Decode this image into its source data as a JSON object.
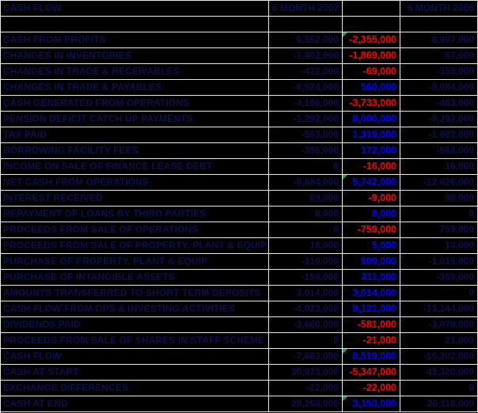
{
  "table": {
    "title": "CASH FLOW",
    "header": {
      "col1": "CASH FLOW",
      "col2": "6 MONTH 2007",
      "col3": "",
      "col4": "6 MONTH 2006"
    },
    "rows": [
      {
        "label": "",
        "v2007": "",
        "variance": "",
        "v2006": "",
        "flag": false
      },
      {
        "label": "CASH FROM PROFITS",
        "v2007": "6,552,000",
        "variance": "-2,355,000",
        "v2006": "8,907,000",
        "flag": true
      },
      {
        "label": "CHANGES IN INVENTORIES",
        "v2007": "-1,802,000",
        "variance": "-1,869,000",
        "v2006": "67,000",
        "flag": false
      },
      {
        "label": "CHANGES IN TRADE & RECEIVABLES",
        "v2007": "-422,000",
        "variance": "-69,000",
        "v2006": "-353,000",
        "flag": false
      },
      {
        "label": "CHANGES IN TRADE & PAYABLES",
        "v2007": "-8,524,000",
        "variance": "560,000",
        "v2006": "-9,084,000",
        "flag": false
      },
      {
        "label": "CASH GENERATED FROM OPERATIONS",
        "v2007": "-4,196,000",
        "variance": "-3,733,000",
        "v2006": "-463,000",
        "flag": false
      },
      {
        "label": "PENSION DEFICIT CATCH UP PAYMENTS",
        "v2007": "-1,292,000",
        "variance": "8,000,000",
        "v2006": "-9,292,000",
        "flag": false
      },
      {
        "label": "TAX PAID",
        "v2007": "-563,000",
        "variance": "1,319,000",
        "v2006": "-1,882,000",
        "flag": false
      },
      {
        "label": "BORROWING FACILITY FEES",
        "v2007": "-396,000",
        "variance": "172,000",
        "v2006": "-568,000",
        "flag": false
      },
      {
        "label": "INCOME ON SALE OF FINANCE LEASE DEBT",
        "v2007": "0",
        "variance": "-16,000",
        "v2006": "16,000",
        "flag": false
      },
      {
        "label": "NET CASH FROM OPERATIONS",
        "v2007": "-6,884,000",
        "variance": "5,742,000",
        "v2006": "-12,626,000",
        "flag": true
      },
      {
        "label": "INTEREST RECEIVED",
        "v2007": "89,000",
        "variance": "-9,000",
        "v2006": "98,000",
        "flag": false
      },
      {
        "label": "REPAYMENT OF LOANS BY THIRD PARTIES",
        "v2007": "8,000",
        "variance": "8,000",
        "v2006": "0",
        "flag": false
      },
      {
        "label": "PROCEEDS FROM SALE OF OPERATIONS",
        "v2007": "0",
        "variance": "-759,000",
        "v2006": "759,000",
        "flag": false
      },
      {
        "label": "PROCEEDS FROM SALE OF PROPERTY, PLANT & EQUIP",
        "v2007": "18,000",
        "variance": "5,000",
        "v2006": "13,000",
        "flag": false
      },
      {
        "label": "PURCHASE OF PROPERTY, PLANT & EQUIP",
        "v2007": "-110,000",
        "variance": "909,000",
        "v2006": "-1,019,000",
        "flag": false
      },
      {
        "label": "PURCHASE OF INTANGIBLE ASSETS",
        "v2007": "-158,000",
        "variance": "211,000",
        "v2006": "-369,000",
        "flag": false
      },
      {
        "label": "AMOUNTS TRANSFERRED TO SHORT TERM DEPOSITS",
        "v2007": "3,014,000",
        "variance": "3,014,000",
        "v2006": "0",
        "flag": false
      },
      {
        "label": "CASH FLOW FROM OPS & INVESTING ACTIVITIES",
        "v2007": "-4,023,000",
        "variance": "9,121,000",
        "v2006": "-13,144,000",
        "flag": false
      },
      {
        "label": "DIVIDENDS PAID",
        "v2007": "-3,660,000",
        "variance": "-581,000",
        "v2006": "-3,079,000",
        "flag": false
      },
      {
        "label": "PROCEEDS FROM SALE OF SHARES IN STAFF SCHEME",
        "v2007": "0",
        "variance": "-21,000",
        "v2006": "21,000",
        "flag": false
      },
      {
        "label": "CASH FLOW",
        "v2007": "-7,683,000",
        "variance": "8,519,000",
        "v2006": "-16,202,000",
        "flag": true
      },
      {
        "label": "CASH AT START",
        "v2007": "36,973,000",
        "variance": "-5,347,000",
        "v2006": "42,320,000",
        "flag": false
      },
      {
        "label": "EXCHANGE DIFFERENCES",
        "v2007": "-22,000",
        "variance": "-22,000",
        "v2006": "0",
        "flag": false
      },
      {
        "label": "CASH AT END",
        "v2007": "29,268,000",
        "variance": "3,150,000",
        "v2006": "26,118,000",
        "flag": true
      }
    ]
  },
  "colors": {
    "background": "#000000",
    "gridline": "#e8e8e8",
    "dark_text": "#0e0e4e",
    "variance_negative": "#ff0000",
    "variance_positive": "#0000ff",
    "flag_green": "#00b050"
  }
}
